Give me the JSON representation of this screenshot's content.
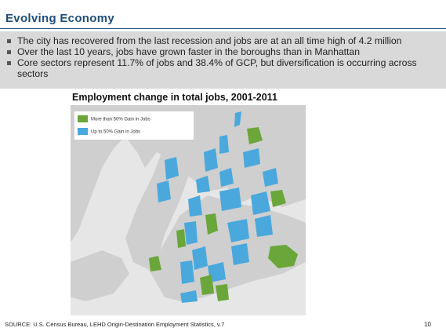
{
  "header": {
    "title": "Evolving Economy"
  },
  "bullets": [
    "The city has recovered from the last recession and jobs are at an all time high of 4.2 million",
    "Over the last 10 years, jobs have grown faster in the boroughs than in Manhattan",
    "Core sectors represent 11.7% of jobs and 38.4% of GCP, but diversification is occurring across sectors"
  ],
  "map": {
    "title": "Employment change in total jobs, 2001-2011",
    "legend": [
      "More than 50% Gain in Jobs",
      "Up to 50% Gain in Jobs"
    ]
  },
  "footer": {
    "source": "SOURCE: U.S. Census Bureau, LEHD Origin-Destination Employment Statistics, v.7",
    "page": "10"
  }
}
